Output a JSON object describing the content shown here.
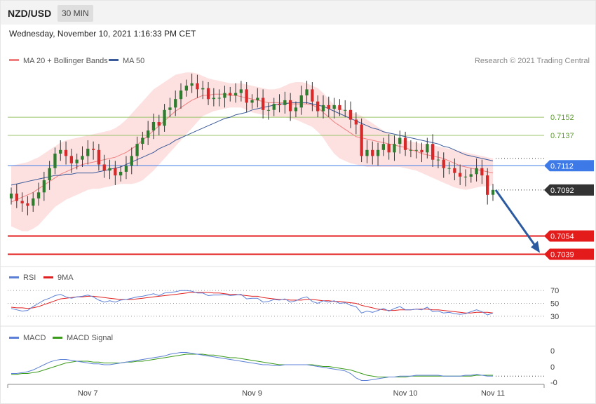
{
  "header": {
    "pair": "NZD/USD",
    "timeframe": "30 MIN",
    "datetime": "Wednesday, November 10, 2021 1:16:33 PM CET"
  },
  "legend": {
    "ma20": "MA 20 + Bollinger Bands",
    "ma50": "MA 50",
    "rsi": "RSI",
    "rsi_ma": "9MA",
    "macd": "MACD",
    "macd_signal": "MACD Signal"
  },
  "copyright": "Research © 2021 Trading Central",
  "colors": {
    "up": "#2e7d2e",
    "down": "#d62a2a",
    "ma20": "#f08080",
    "ma50": "#3a5a99",
    "band_fill": "#fddcdc",
    "resistance": "#9bc46b",
    "pivot": "#3d7ae8",
    "support": "#e41b1b",
    "current": "#333333",
    "arrow": "#2c5aa0",
    "rsi": "#5b7fd6",
    "rsi_ma": "#e02020",
    "macd": "#5b7fd6",
    "macd_signal": "#3a9a1a"
  },
  "chart_data": [
    {
      "type": "candlestick",
      "y_range": [
        0.703,
        0.7192
      ],
      "x_ticks": [
        {
          "label": "Nov 7",
          "index": 14
        },
        {
          "label": "Nov 9",
          "index": 44
        },
        {
          "label": "Nov 10",
          "index": 72
        },
        {
          "label": "Nov 11",
          "index": 88
        }
      ],
      "levels": [
        {
          "value": 0.7152,
          "label": "0.7152",
          "kind": "resistance"
        },
        {
          "value": 0.7137,
          "label": "0.7137",
          "kind": "resistance"
        },
        {
          "value": 0.7112,
          "label": "0.7112",
          "kind": "pivot"
        },
        {
          "value": 0.7092,
          "label": "0.7092",
          "kind": "current"
        },
        {
          "value": 0.7054,
          "label": "0.7054",
          "kind": "support"
        },
        {
          "value": 0.7039,
          "label": "0.7039",
          "kind": "support"
        }
      ],
      "closes": [
        0.7089,
        0.7083,
        0.7081,
        0.7079,
        0.7085,
        0.709,
        0.71,
        0.711,
        0.7122,
        0.7125,
        0.712,
        0.7114,
        0.7117,
        0.712,
        0.7126,
        0.7125,
        0.7113,
        0.7108,
        0.711,
        0.7104,
        0.7107,
        0.7112,
        0.712,
        0.713,
        0.7135,
        0.7141,
        0.7148,
        0.7145,
        0.7158,
        0.716,
        0.7167,
        0.7174,
        0.7178,
        0.718,
        0.7175,
        0.7176,
        0.7167,
        0.7168,
        0.7168,
        0.7172,
        0.717,
        0.7172,
        0.7175,
        0.7164,
        0.7166,
        0.7168,
        0.7158,
        0.7158,
        0.7163,
        0.7162,
        0.7166,
        0.7157,
        0.716,
        0.717,
        0.7175,
        0.7165,
        0.7157,
        0.7162,
        0.7159,
        0.7162,
        0.7158,
        0.7158,
        0.715,
        0.7146,
        0.712,
        0.7125,
        0.712,
        0.7125,
        0.713,
        0.7123,
        0.713,
        0.7135,
        0.7125,
        0.7125,
        0.7125,
        0.7123,
        0.713,
        0.7117,
        0.7117,
        0.711,
        0.711,
        0.7106,
        0.7103,
        0.7103,
        0.7105,
        0.711,
        0.7104,
        0.7088,
        0.7092
      ],
      "ma20": [
        0.7082,
        0.7084,
        0.7086,
        0.7088,
        0.709,
        0.7093,
        0.7096,
        0.7099,
        0.7102,
        0.7105,
        0.7107,
        0.7109,
        0.7111,
        0.7113,
        0.7114,
        0.7115,
        0.7116,
        0.7117,
        0.7118,
        0.7119,
        0.7121,
        0.7123,
        0.7126,
        0.7129,
        0.7133,
        0.7137,
        0.7141,
        0.7145,
        0.7149,
        0.7153,
        0.7157,
        0.716,
        0.7163,
        0.7166,
        0.7168,
        0.717,
        0.717,
        0.7171,
        0.7171,
        0.7171,
        0.717,
        0.717,
        0.7169,
        0.7168,
        0.7167,
        0.7166,
        0.7165,
        0.7164,
        0.7164,
        0.7164,
        0.7164,
        0.7163,
        0.7163,
        0.7163,
        0.7163,
        0.7162,
        0.716,
        0.7156,
        0.7152,
        0.7148,
        0.7145,
        0.7142,
        0.7139,
        0.7136,
        0.7135,
        0.7134,
        0.7133,
        0.7132,
        0.7131,
        0.713,
        0.7129,
        0.7128,
        0.7127,
        0.7125,
        0.7124,
        0.7122,
        0.7121,
        0.712,
        0.7119,
        0.7118,
        0.7116,
        0.7114,
        0.7112,
        0.7111,
        0.711,
        0.7109,
        0.7108,
        0.7107,
        0.7106
      ],
      "bb_upper": [
        0.7112,
        0.7113,
        0.7114,
        0.7115,
        0.7117,
        0.7119,
        0.7122,
        0.7125,
        0.7128,
        0.7131,
        0.7133,
        0.7134,
        0.7135,
        0.7136,
        0.7137,
        0.7138,
        0.7139,
        0.714,
        0.7141,
        0.7143,
        0.7146,
        0.715,
        0.7155,
        0.716,
        0.7165,
        0.717,
        0.7175,
        0.7178,
        0.7181,
        0.7184,
        0.7187,
        0.7188,
        0.7189,
        0.7189,
        0.7188,
        0.7186,
        0.7184,
        0.7183,
        0.7182,
        0.7181,
        0.718,
        0.718,
        0.718,
        0.7179,
        0.7178,
        0.7177,
        0.7176,
        0.7175,
        0.7175,
        0.7176,
        0.7178,
        0.718,
        0.7181,
        0.7181,
        0.718,
        0.7178,
        0.7176,
        0.7172,
        0.7167,
        0.7162,
        0.716,
        0.7158,
        0.7156,
        0.7155,
        0.7153,
        0.715,
        0.7147,
        0.7144,
        0.7141,
        0.7139,
        0.7136,
        0.7134,
        0.7133,
        0.7132,
        0.7131,
        0.713,
        0.713,
        0.7129,
        0.7128,
        0.7127,
        0.7126,
        0.7125,
        0.7124,
        0.7123,
        0.7122,
        0.7121,
        0.712,
        0.7119,
        0.7118
      ],
      "bb_lower": [
        0.7062,
        0.706,
        0.7058,
        0.7058,
        0.706,
        0.7063,
        0.7068,
        0.7073,
        0.7078,
        0.7081,
        0.7084,
        0.7086,
        0.7088,
        0.709,
        0.7092,
        0.7093,
        0.7093,
        0.7094,
        0.7095,
        0.7096,
        0.7097,
        0.7097,
        0.7097,
        0.7098,
        0.71,
        0.7104,
        0.7108,
        0.7113,
        0.7118,
        0.7123,
        0.7128,
        0.7133,
        0.7138,
        0.7143,
        0.7148,
        0.7153,
        0.7155,
        0.7157,
        0.7158,
        0.7159,
        0.716,
        0.716,
        0.716,
        0.7158,
        0.7156,
        0.7155,
        0.7154,
        0.7153,
        0.7152,
        0.7152,
        0.7152,
        0.7151,
        0.715,
        0.7148,
        0.7146,
        0.7144,
        0.714,
        0.7135,
        0.7128,
        0.7122,
        0.7118,
        0.7116,
        0.7114,
        0.7113,
        0.7112,
        0.7111,
        0.7111,
        0.7111,
        0.7111,
        0.7111,
        0.7111,
        0.7111,
        0.711,
        0.7109,
        0.7108,
        0.7106,
        0.7104,
        0.7102,
        0.71,
        0.7098,
        0.7096,
        0.7094,
        0.7093,
        0.7092,
        0.7093,
        0.7094,
        0.7095,
        0.7095,
        0.7096
      ],
      "ma50": [
        0.7096,
        0.7097,
        0.7098,
        0.7099,
        0.71,
        0.7101,
        0.7102,
        0.7103,
        0.7104,
        0.7104,
        0.7105,
        0.7105,
        0.7106,
        0.7106,
        0.7106,
        0.7106,
        0.7107,
        0.7108,
        0.7109,
        0.711,
        0.7111,
        0.7113,
        0.7115,
        0.7117,
        0.7119,
        0.7121,
        0.7123,
        0.7126,
        0.7128,
        0.713,
        0.7133,
        0.7135,
        0.7137,
        0.7139,
        0.7141,
        0.7143,
        0.7145,
        0.7147,
        0.7149,
        0.7151,
        0.7152,
        0.7154,
        0.7155,
        0.7156,
        0.7158,
        0.7159,
        0.716,
        0.7161,
        0.7162,
        0.7163,
        0.7163,
        0.7164,
        0.7164,
        0.7164,
        0.7164,
        0.7163,
        0.7162,
        0.7161,
        0.7159,
        0.7157,
        0.7155,
        0.7153,
        0.7151,
        0.7149,
        0.7147,
        0.7145,
        0.7143,
        0.7142,
        0.714,
        0.7139,
        0.7138,
        0.7137,
        0.7136,
        0.7135,
        0.7134,
        0.7133,
        0.7132,
        0.7131,
        0.713,
        0.7128,
        0.7127,
        0.7125,
        0.7123,
        0.7121,
        0.712,
        0.7119,
        0.7118,
        0.7117,
        0.7116
      ],
      "forecast_arrow": {
        "from_value": 0.7092,
        "to_value": 0.7039
      }
    },
    {
      "type": "line",
      "name": "RSI",
      "y_ticks": [
        70,
        50,
        30
      ],
      "y_range": [
        20,
        80
      ],
      "rsi": [
        42,
        40,
        38,
        39,
        45,
        50,
        55,
        58,
        62,
        64,
        60,
        58,
        60,
        61,
        63,
        60,
        55,
        52,
        54,
        52,
        55,
        56,
        58,
        60,
        61,
        63,
        65,
        62,
        66,
        67,
        68,
        70,
        70,
        69,
        66,
        66,
        62,
        63,
        63,
        64,
        62,
        63,
        64,
        57,
        58,
        58,
        52,
        53,
        56,
        55,
        57,
        52,
        54,
        58,
        60,
        53,
        50,
        54,
        52,
        54,
        50,
        51,
        47,
        45,
        35,
        38,
        36,
        39,
        42,
        38,
        42,
        45,
        40,
        40,
        41,
        40,
        44,
        37,
        38,
        35,
        36,
        34,
        33,
        34,
        37,
        40,
        37,
        32,
        35
      ],
      "rsi_ma": [
        44,
        43,
        43,
        42,
        43,
        45,
        48,
        51,
        54,
        57,
        58,
        59,
        60,
        60,
        61,
        61,
        60,
        59,
        58,
        57,
        56,
        56,
        56,
        57,
        58,
        59,
        60,
        61,
        62,
        63,
        64,
        65,
        66,
        67,
        67,
        67,
        67,
        66,
        66,
        65,
        64,
        64,
        63,
        62,
        61,
        61,
        59,
        58,
        57,
        56,
        56,
        55,
        55,
        55,
        56,
        56,
        55,
        54,
        54,
        53,
        53,
        52,
        51,
        50,
        47,
        45,
        43,
        41,
        40,
        39,
        39,
        40,
        40,
        40,
        41,
        41,
        41,
        40,
        40,
        39,
        38,
        37,
        36,
        35,
        35,
        36,
        36,
        36,
        35
      ]
    },
    {
      "type": "line",
      "name": "MACD",
      "y_ticks": [
        "0",
        "0",
        "-0"
      ],
      "y_range": [
        -0.002,
        0.002
      ],
      "macd": [
        -0.001,
        -0.001,
        -0.0009,
        -0.0008,
        -0.0006,
        -0.0003,
        0.0,
        0.0003,
        0.0005,
        0.0006,
        0.0006,
        0.0005,
        0.0004,
        0.0003,
        0.0002,
        0.0001,
        0.0001,
        0.0,
        0.0,
        0.0001,
        0.0002,
        0.0003,
        0.0004,
        0.0005,
        0.0006,
        0.0007,
        0.0008,
        0.0009,
        0.001,
        0.0012,
        0.0013,
        0.0014,
        0.0014,
        0.0013,
        0.0012,
        0.0011,
        0.001,
        0.0009,
        0.0008,
        0.0007,
        0.0006,
        0.0005,
        0.0004,
        0.0003,
        0.0002,
        0.0001,
        0.0,
        0.0,
        -0.0001,
        -0.0001,
        0.0,
        0.0,
        0.0,
        0.0,
        0.0,
        -0.0001,
        -0.0002,
        -0.0003,
        -0.0004,
        -0.0005,
        -0.0006,
        -0.0007,
        -0.001,
        -0.0015,
        -0.0018,
        -0.0018,
        -0.0017,
        -0.0016,
        -0.0015,
        -0.0014,
        -0.0014,
        -0.0013,
        -0.0013,
        -0.0013,
        -0.0012,
        -0.0012,
        -0.0012,
        -0.0012,
        -0.0012,
        -0.0013,
        -0.0013,
        -0.0013,
        -0.0013,
        -0.0012,
        -0.0012,
        -0.0011,
        -0.0012,
        -0.0013,
        -0.0013
      ],
      "macd_signal": [
        -0.0011,
        -0.0011,
        -0.001,
        -0.001,
        -0.0009,
        -0.0008,
        -0.0006,
        -0.0004,
        -0.0002,
        0.0,
        0.0002,
        0.0003,
        0.0004,
        0.0004,
        0.0004,
        0.0003,
        0.0003,
        0.0002,
        0.0002,
        0.0002,
        0.0002,
        0.0003,
        0.0003,
        0.0004,
        0.0004,
        0.0005,
        0.0006,
        0.0007,
        0.0008,
        0.0009,
        0.001,
        0.0011,
        0.0012,
        0.0012,
        0.0012,
        0.0012,
        0.0011,
        0.0011,
        0.001,
        0.0009,
        0.0008,
        0.0008,
        0.0007,
        0.0006,
        0.0005,
        0.0004,
        0.0003,
        0.0002,
        0.0001,
        0.0,
        0.0,
        0.0,
        0.0,
        0.0,
        0.0,
        0.0,
        -0.0001,
        -0.0002,
        -0.0002,
        -0.0003,
        -0.0004,
        -0.0005,
        -0.0006,
        -0.0008,
        -0.001,
        -0.0012,
        -0.0013,
        -0.0014,
        -0.0014,
        -0.0014,
        -0.0014,
        -0.0014,
        -0.0014,
        -0.0013,
        -0.0013,
        -0.0013,
        -0.0013,
        -0.0013,
        -0.0013,
        -0.0013,
        -0.0013,
        -0.0013,
        -0.0013,
        -0.0013,
        -0.0013,
        -0.0012,
        -0.0012,
        -0.0012,
        -0.0012
      ]
    }
  ]
}
